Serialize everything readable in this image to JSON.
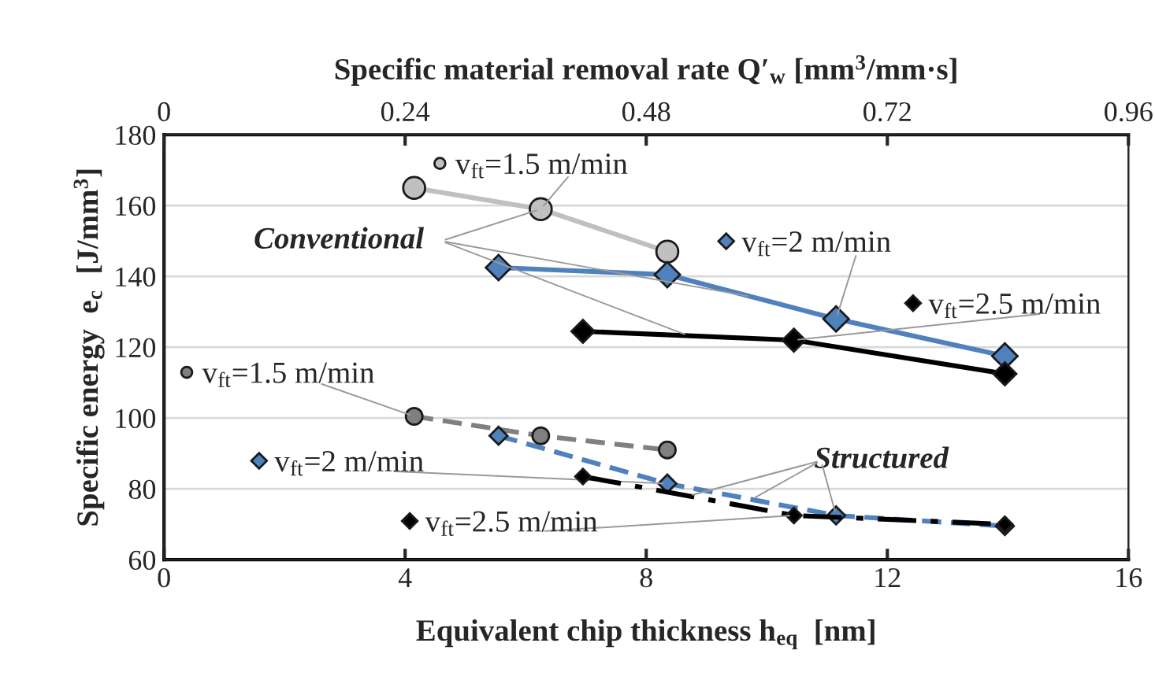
{
  "chart_data": {
    "type": "line",
    "xlabel": "Equivalent chip thickness h$_{eq}$  [nm]",
    "ylabel": "Specific energy  e$_{c}$  [J/mm$^{3}$]",
    "x2label": "Specific material removal rate Q′$_{w}$ [mm$^{3}$/mm·s]",
    "xlim": [
      0,
      16
    ],
    "xticks": [
      0,
      4,
      8,
      12,
      16
    ],
    "x2lim": [
      0,
      0.96
    ],
    "x2ticks": [
      0,
      0.24,
      0.48,
      0.72,
      0.96
    ],
    "ylim": [
      60,
      180
    ],
    "yticks": [
      60,
      80,
      100,
      120,
      140,
      160,
      180
    ],
    "grid": "y",
    "legend": "left",
    "annotations": [
      {
        "text": "Conventional",
        "x": 6.25,
        "y": 159
      },
      {
        "text": "Structured",
        "x": 11.15,
        "y": 72.5
      }
    ],
    "series": [
      {
        "name": "v$_{ft}$=1.5 m/min",
        "color": "#c0c0c0",
        "marker": "circle",
        "line_style": "solid",
        "x": [
          4.15,
          6.25,
          8.35
        ],
        "values": [
          165,
          159,
          147
        ]
      },
      {
        "name": "v$_{ft}$=2 m/min",
        "color": "#4f81bd",
        "marker": "diamond",
        "line_style": "solid",
        "x": [
          5.55,
          8.35,
          11.15,
          13.95
        ],
        "values": [
          142.5,
          140.5,
          128,
          117.5
        ]
      },
      {
        "name": "v$_{ft}$=2.5 m/min",
        "color": "#000000",
        "marker": "diamond",
        "line_style": "solid",
        "x": [
          6.95,
          10.45,
          13.95
        ],
        "values": [
          124.5,
          122,
          112.5
        ]
      },
      {
        "name": "v$_{ft}$=1.5 m/min",
        "color": "#808080",
        "marker": "circle",
        "line_style": "dashed",
        "x": [
          4.15,
          6.25,
          8.35
        ],
        "values": [
          100.5,
          95,
          91
        ]
      },
      {
        "name": "v$_{ft}$=2 m/min",
        "color": "#4f81bd",
        "marker": "diamond",
        "line_style": "dashed",
        "x": [
          5.55,
          8.35,
          11.15,
          13.95
        ],
        "values": [
          95,
          81.5,
          72.5,
          69.5
        ]
      },
      {
        "name": "v$_{ft}$=2.5 m/min",
        "color": "#000000",
        "marker": "diamond",
        "line_style": "dashdot",
        "x": [
          6.95,
          10.45,
          13.95
        ],
        "values": [
          83.5,
          72.5,
          70
        ]
      }
    ]
  }
}
